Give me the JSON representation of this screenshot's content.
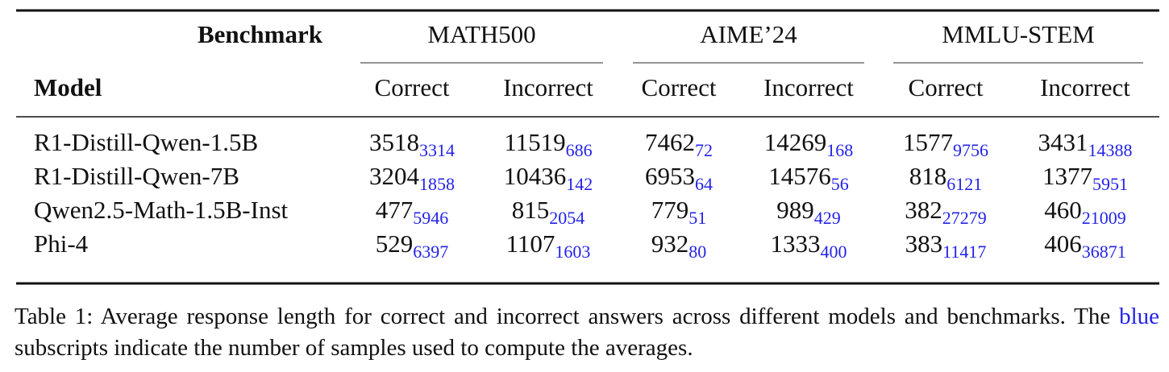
{
  "table": {
    "corner_top": "Benchmark",
    "corner_bottom": "Model",
    "groups": [
      {
        "name": "MATH500",
        "columns": [
          "Correct",
          "Incorrect"
        ]
      },
      {
        "name": "AIME’24",
        "columns": [
          "Correct",
          "Incorrect"
        ]
      },
      {
        "name": "MMLU-STEM",
        "columns": [
          "Correct",
          "Incorrect"
        ]
      }
    ],
    "rows": [
      {
        "model": "R1-Distill-Qwen-1.5B",
        "cells": [
          {
            "value": 3518,
            "samples": 3314
          },
          {
            "value": 11519,
            "samples": 686
          },
          {
            "value": 7462,
            "samples": 72
          },
          {
            "value": 14269,
            "samples": 168
          },
          {
            "value": 1577,
            "samples": 9756
          },
          {
            "value": 3431,
            "samples": 14388
          }
        ]
      },
      {
        "model": "R1-Distill-Qwen-7B",
        "cells": [
          {
            "value": 3204,
            "samples": 1858
          },
          {
            "value": 10436,
            "samples": 142
          },
          {
            "value": 6953,
            "samples": 64
          },
          {
            "value": 14576,
            "samples": 56
          },
          {
            "value": 818,
            "samples": 6121
          },
          {
            "value": 1377,
            "samples": 5951
          }
        ]
      },
      {
        "model": "Qwen2.5-Math-1.5B-Inst",
        "cells": [
          {
            "value": 477,
            "samples": 5946
          },
          {
            "value": 815,
            "samples": 2054
          },
          {
            "value": 779,
            "samples": 51
          },
          {
            "value": 989,
            "samples": 429
          },
          {
            "value": 382,
            "samples": 27279
          },
          {
            "value": 460,
            "samples": 21009
          }
        ]
      },
      {
        "model": "Phi-4",
        "cells": [
          {
            "value": 529,
            "samples": 6397
          },
          {
            "value": 1107,
            "samples": 1603
          },
          {
            "value": 932,
            "samples": 80
          },
          {
            "value": 1333,
            "samples": 400
          },
          {
            "value": 383,
            "samples": 11417
          },
          {
            "value": 406,
            "samples": 36871
          }
        ]
      }
    ]
  },
  "caption": {
    "parts": [
      "Table 1: Average response length for correct and incorrect answers across different models and benchmarks. The",
      "blue",
      "subscripts indicate the number of samples used to compute the averages."
    ]
  }
}
